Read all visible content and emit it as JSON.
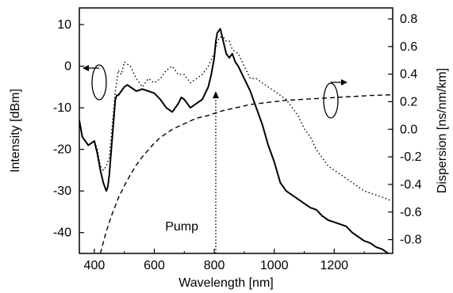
{
  "chart_data": {
    "type": "line",
    "title": "",
    "xlabel": "Wavelength [nm]",
    "ylabel_left": "Intensity [dBm]",
    "ylabel_right": "Dispersion [ns/nm/km]",
    "xlim": [
      350,
      1395
    ],
    "ylim_left": [
      -45,
      14
    ],
    "ylim_right": [
      -0.9,
      0.88
    ],
    "x_ticks": [
      400,
      600,
      800,
      1000,
      1200
    ],
    "y_ticks_left": [
      10,
      0,
      -10,
      -20,
      -30,
      -40
    ],
    "y_ticks_right": [
      0.8,
      0.6,
      0.4,
      0.2,
      0.0,
      -0.2,
      -0.4,
      -0.6,
      -0.8
    ],
    "x_tick_labels": [
      "400",
      "600",
      "800",
      "1000",
      "1200"
    ],
    "y_tick_labels_left": [
      "10",
      "0",
      "-10",
      "-20",
      "-30",
      "-40"
    ],
    "y_tick_labels_right": [
      "0.8",
      "0.6",
      "0.4",
      "0.2",
      "0.0",
      "-0.2",
      "-0.4",
      "-0.6",
      "-0.8"
    ],
    "grid": false,
    "legend": "none",
    "annotations": [
      {
        "text": "Pump",
        "x": 805,
        "axis": "left",
        "arrow_from_y": -45,
        "arrow_to_y": -6
      }
    ],
    "series": [
      {
        "axis": "left",
        "style": "solid",
        "x": [
          350,
          360,
          380,
          400,
          410,
          420,
          430,
          440,
          445,
          450,
          460,
          470,
          475,
          480,
          490,
          500,
          510,
          520,
          540,
          560,
          580,
          600,
          620,
          640,
          660,
          670,
          680,
          690,
          700,
          720,
          740,
          760,
          780,
          790,
          800,
          805,
          810,
          820,
          830,
          840,
          850,
          860,
          870,
          880,
          900,
          920,
          940,
          960,
          980,
          1000,
          1020,
          1040,
          1060,
          1080,
          1100,
          1120,
          1140,
          1160,
          1180,
          1200,
          1220,
          1240,
          1260,
          1280,
          1300,
          1320,
          1340,
          1360,
          1380
        ],
        "y": [
          -13,
          -17,
          -19,
          -18,
          -21,
          -25,
          -28,
          -30,
          -29,
          -26,
          -17,
          -8,
          -7,
          -7,
          -6,
          -5,
          -4.5,
          -5,
          -6,
          -5.5,
          -6,
          -6.5,
          -8,
          -10,
          -11,
          -10,
          -9,
          -7.5,
          -8,
          -10,
          -9,
          -8,
          -5,
          -2,
          2,
          6,
          8,
          9,
          6,
          3,
          2,
          3,
          1,
          0,
          -3,
          -6,
          -10,
          -14,
          -19,
          -23,
          -28,
          -30,
          -31,
          -32,
          -33,
          -34,
          -34.5,
          -36,
          -37,
          -37.5,
          -38,
          -38.5,
          -40,
          -41,
          -42,
          -42.5,
          -43.5,
          -44,
          -45
        ]
      },
      {
        "axis": "left",
        "style": "dotted",
        "x": [
          350,
          360,
          380,
          400,
          410,
          420,
          430,
          440,
          450,
          460,
          470,
          480,
          490,
          500,
          520,
          540,
          560,
          580,
          600,
          620,
          640,
          660,
          680,
          700,
          720,
          740,
          760,
          780,
          800,
          810,
          820,
          830,
          840,
          850,
          860,
          880,
          900,
          920,
          940,
          960,
          980,
          1000,
          1020,
          1040,
          1060,
          1080,
          1100,
          1120,
          1140,
          1160,
          1180,
          1200,
          1220,
          1240,
          1260,
          1280,
          1300,
          1320,
          1340,
          1360,
          1380,
          1390
        ],
        "y": [
          -13,
          -17,
          -19,
          -18,
          -20,
          -24,
          -25,
          -24,
          -22,
          -14,
          -6,
          -1,
          -2,
          1,
          0,
          -3,
          -5,
          -3,
          -4,
          -3,
          -1,
          0,
          -2,
          -2,
          -4,
          -3,
          -2,
          0,
          3,
          6,
          7,
          7,
          6,
          6,
          4,
          3,
          0,
          -3,
          -3,
          -4,
          -5,
          -6,
          -7,
          -8,
          -10,
          -12,
          -15,
          -17,
          -20,
          -22,
          -24,
          -25,
          -26,
          -27,
          -28,
          -29,
          -30,
          -30.5,
          -31,
          -31.5,
          -32,
          -32.5
        ]
      },
      {
        "axis": "right",
        "style": "dashed",
        "x": [
          420,
          440,
          460,
          480,
          500,
          520,
          540,
          560,
          580,
          600,
          620,
          640,
          660,
          680,
          700,
          720,
          740,
          760,
          780,
          800,
          820,
          840,
          860,
          880,
          900,
          920,
          940,
          960,
          980,
          1000,
          1040,
          1080,
          1120,
          1160,
          1200,
          1240,
          1280,
          1320,
          1360,
          1390
        ],
        "y": [
          -0.9,
          -0.74,
          -0.61,
          -0.5,
          -0.41,
          -0.33,
          -0.26,
          -0.2,
          -0.15,
          -0.1,
          -0.06,
          -0.03,
          0.0,
          0.02,
          0.04,
          0.06,
          0.08,
          0.09,
          0.1,
          0.115,
          0.13,
          0.14,
          0.15,
          0.16,
          0.17,
          0.18,
          0.185,
          0.19,
          0.195,
          0.2,
          0.21,
          0.215,
          0.22,
          0.225,
          0.23,
          0.235,
          0.24,
          0.245,
          0.248,
          0.25
        ]
      }
    ]
  }
}
